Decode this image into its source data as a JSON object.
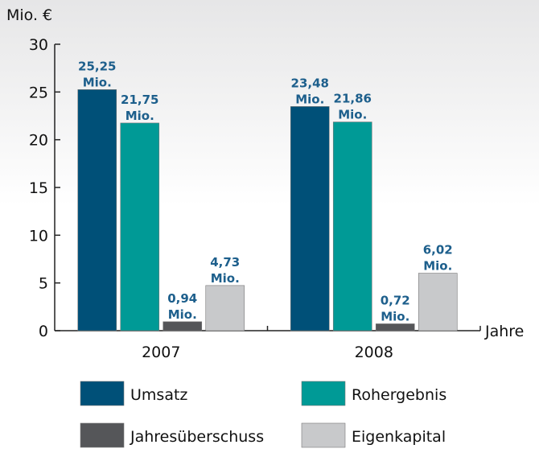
{
  "chart_data": {
    "type": "bar",
    "y_label": "Mio. €",
    "x_label": "Jahre",
    "categories": [
      "2007",
      "2008"
    ],
    "series": [
      {
        "name": "Umsatz",
        "color": "#005078",
        "values": [
          25.25,
          23.48
        ],
        "value_labels": [
          "25,25 Mio.",
          "23,48 Mio."
        ]
      },
      {
        "name": "Rohergebnis",
        "color": "#009a96",
        "values": [
          21.75,
          21.86
        ],
        "value_labels": [
          "21,75 Mio.",
          "21,86 Mio."
        ]
      },
      {
        "name": "Jahresüberschuss",
        "color": "#555659",
        "values": [
          0.94,
          0.72
        ],
        "value_labels": [
          "0,94 Mio.",
          "0,72 Mio."
        ]
      },
      {
        "name": "Eigenkapital",
        "color": "#c8c9cb",
        "values": [
          4.73,
          6.02
        ],
        "value_labels": [
          "4,73 Mio.",
          "6,02 Mio."
        ]
      }
    ],
    "ylim": [
      0,
      30
    ],
    "yticks": [
      0,
      5,
      10,
      15,
      20,
      25,
      30
    ]
  }
}
